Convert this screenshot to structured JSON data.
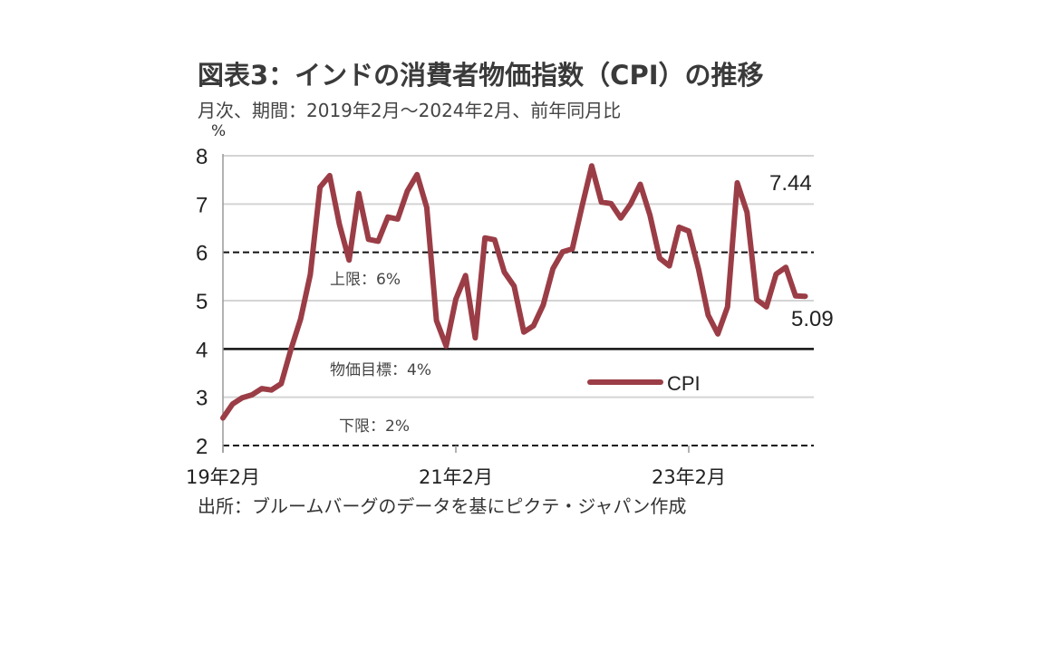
{
  "chart_data": {
    "type": "line",
    "title": "図表3：インドの消費者物価指数（CPI）の推移",
    "subtitle": "月次、期間：2019年2月～2024年2月、前年同月比",
    "ylabel": "%",
    "xlabel": "",
    "ylim": [
      2,
      8
    ],
    "yticks": [
      "2",
      "3",
      "4",
      "5",
      "6",
      "7",
      "8"
    ],
    "ytick_values": [
      2,
      3,
      4,
      5,
      6,
      7,
      8
    ],
    "xticks": [
      {
        "label": "19年2月",
        "index": 0
      },
      {
        "label": "21年2月",
        "index": 24
      },
      {
        "label": "23年2月",
        "index": 48
      }
    ],
    "grid": true,
    "legend": {
      "position": "center-right",
      "entries": [
        "CPI"
      ]
    },
    "series": [
      {
        "name": "CPI",
        "color": "#9b3d46",
        "start": "2019-02",
        "frequency": "monthly",
        "values": [
          2.57,
          2.86,
          2.99,
          3.05,
          3.18,
          3.15,
          3.28,
          3.99,
          4.62,
          5.54,
          7.35,
          7.59,
          6.58,
          5.84,
          7.22,
          6.27,
          6.23,
          6.73,
          6.69,
          7.27,
          7.61,
          6.93,
          4.59,
          4.06,
          5.03,
          5.52,
          4.23,
          6.3,
          6.26,
          5.59,
          5.3,
          4.35,
          4.48,
          4.91,
          5.66,
          6.01,
          6.07,
          6.95,
          7.79,
          7.04,
          7.01,
          6.71,
          7.0,
          7.41,
          6.77,
          5.88,
          5.72,
          6.52,
          6.44,
          5.66,
          4.7,
          4.31,
          4.87,
          7.44,
          6.83,
          5.02,
          4.87,
          5.55,
          5.69,
          5.1,
          5.09
        ]
      }
    ],
    "reference_lines": [
      {
        "value": 6,
        "style": "dashed",
        "label": "上限：6%"
      },
      {
        "value": 4,
        "style": "solid",
        "label": "物価目標：4%"
      },
      {
        "value": 2,
        "style": "dashed",
        "label": "下限：2%"
      }
    ],
    "annotations": [
      {
        "text": "7.44",
        "target_value": 7.44
      },
      {
        "text": "5.09",
        "target_value": 5.09
      }
    ],
    "source": "出所：ブルームバーグのデータを基にピクテ・ジャパン作成"
  }
}
